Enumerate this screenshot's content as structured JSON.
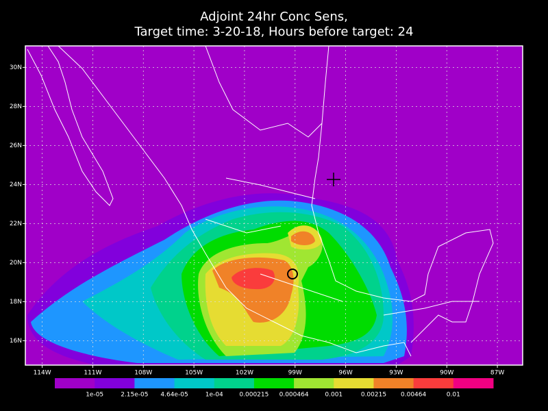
{
  "title": [
    "Adjoint 24hr Conc Sens,",
    "Target time: 3-20-18, Hours before target: 24"
  ],
  "map": {
    "xlim": [
      -115,
      -85.5
    ],
    "ylim": [
      14.75,
      31.1
    ],
    "xticks": [
      {
        "value": -114,
        "label": "114W"
      },
      {
        "value": -111,
        "label": "111W"
      },
      {
        "value": -108,
        "label": "108W"
      },
      {
        "value": -105,
        "label": "105W"
      },
      {
        "value": -102,
        "label": "102W"
      },
      {
        "value": -99,
        "label": "99W"
      },
      {
        "value": -96,
        "label": "96W"
      },
      {
        "value": -93,
        "label": "93W"
      },
      {
        "value": -90,
        "label": "90W"
      },
      {
        "value": -87,
        "label": "87W"
      }
    ],
    "yticks": [
      {
        "value": 16,
        "label": "16N"
      },
      {
        "value": 18,
        "label": "18N"
      },
      {
        "value": 20,
        "label": "20N"
      },
      {
        "value": 22,
        "label": "22N"
      },
      {
        "value": 24,
        "label": "24N"
      },
      {
        "value": 26,
        "label": "26N"
      },
      {
        "value": 28,
        "label": "28N"
      },
      {
        "value": 30,
        "label": "30N"
      }
    ]
  },
  "colorbar": {
    "colors": [
      "#a000c8",
      "#8200dc",
      "#1e96ff",
      "#00c8c8",
      "#00d28c",
      "#00dc00",
      "#a0e632",
      "#e6dc32",
      "#f08228",
      "#fa3c3c",
      "#f00082"
    ],
    "labels": [
      "1e-05",
      "2.15e-05",
      "4.64e-05",
      "1e-04",
      "0.000215",
      "0.000464",
      "0.001",
      "0.00215",
      "0.00464",
      "0.01"
    ]
  }
}
